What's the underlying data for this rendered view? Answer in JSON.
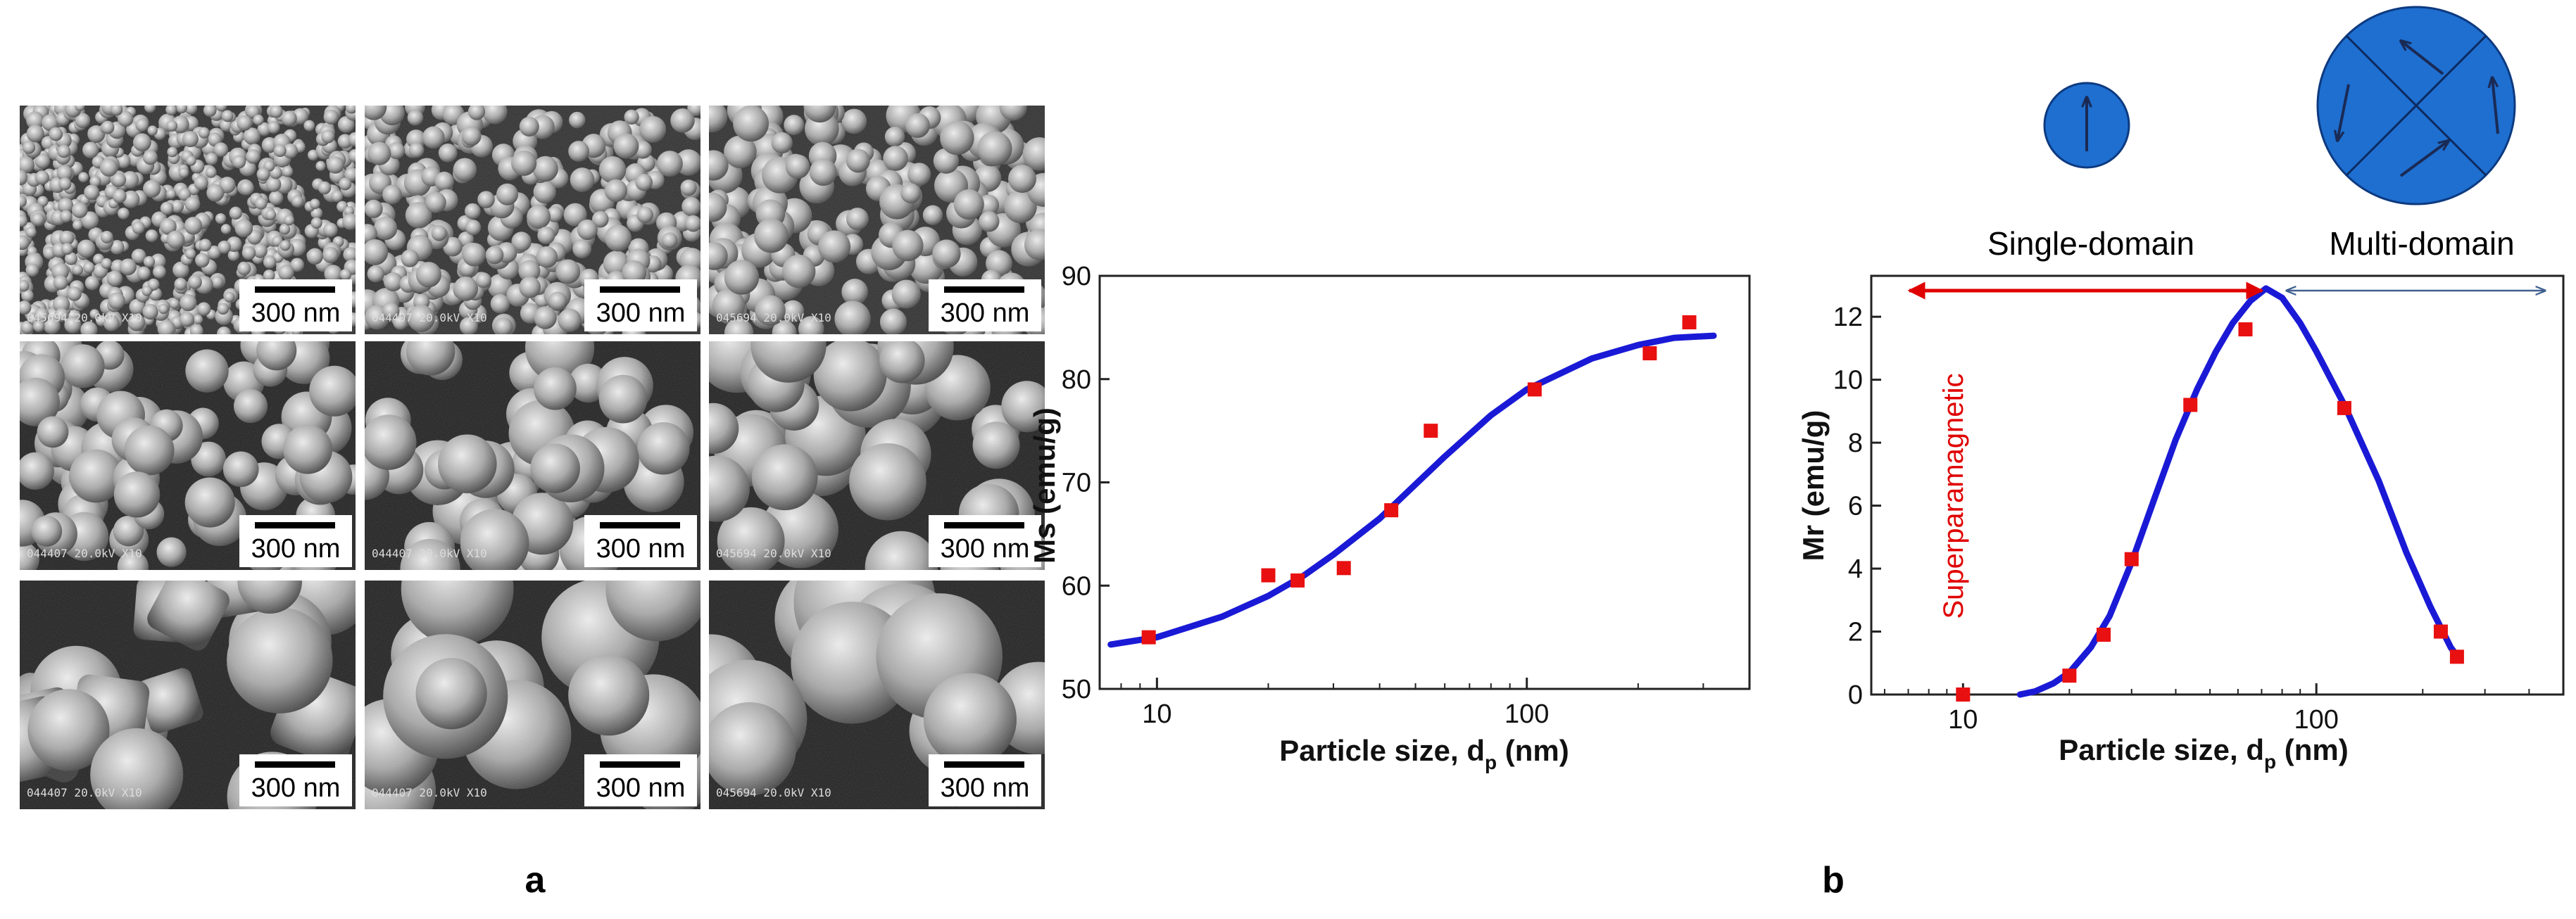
{
  "figure": {
    "panel_a_label": "a",
    "panel_b_label": "b",
    "scalebar_label": "300 nm",
    "legend_regimes": [
      "Single-domain",
      "Multi-domain"
    ],
    "superparamagnetic_label": "Superparamagnetic",
    "colors": {
      "curve": "#1a1ad6",
      "points": "#e81010",
      "domain_fill": "#1e6fd0",
      "arrow_red": "#e00000",
      "arrow_blue": "#3f5f8f"
    },
    "micrographs": {
      "rows": 3,
      "cols": 3,
      "metadata_strips": [
        "045694 20.0kV X10",
        "044407 20.0kV X10",
        "045694 20.0kV X10",
        "044407 20.0kV X10",
        "044407 20.0kV X10",
        "045694 20.0kV X10",
        "044407 20.0kV X10",
        "044407 20.0kV X10",
        "045694 20.0kV X10"
      ]
    }
  },
  "chart_data": [
    {
      "type": "scatter",
      "ylabel": "Ms (emu/g)",
      "xlabel_main": "Particle size, d",
      "xlabel_sub": "p",
      "xlabel_unit": " (nm)",
      "x_scale": "log",
      "xlim": [
        7,
        400
      ],
      "ylim": [
        50,
        90
      ],
      "x_ticks": [
        10,
        100
      ],
      "y_ticks": [
        50,
        60,
        70,
        80,
        90
      ],
      "points": [
        [
          9.5,
          55
        ],
        [
          20,
          61
        ],
        [
          24,
          60.5
        ],
        [
          32,
          61.7
        ],
        [
          43,
          67.3
        ],
        [
          55,
          75
        ],
        [
          105,
          79
        ],
        [
          215,
          82.5
        ],
        [
          275,
          85.5
        ]
      ],
      "fit_curve": [
        [
          7.5,
          54.3
        ],
        [
          10,
          55
        ],
        [
          15,
          57
        ],
        [
          20,
          59
        ],
        [
          25,
          61
        ],
        [
          30,
          63
        ],
        [
          40,
          66.5
        ],
        [
          50,
          69.8
        ],
        [
          60,
          72.5
        ],
        [
          80,
          76.5
        ],
        [
          100,
          79
        ],
        [
          150,
          82
        ],
        [
          200,
          83.3
        ],
        [
          250,
          84
        ],
        [
          320,
          84.2
        ]
      ]
    },
    {
      "type": "scatter",
      "ylabel": "Mr (emu/g)",
      "xlabel_main": "Particle size, d",
      "xlabel_sub": "p",
      "xlabel_unit": " (nm)",
      "x_scale": "log",
      "xlim": [
        5.5,
        500
      ],
      "ylim": [
        0,
        13.3
      ],
      "x_ticks": [
        10,
        100
      ],
      "y_ticks": [
        0,
        2,
        4,
        6,
        8,
        10,
        12
      ],
      "points": [
        [
          10,
          0
        ],
        [
          20,
          0.6
        ],
        [
          25,
          1.9
        ],
        [
          30,
          4.3
        ],
        [
          44,
          9.2
        ],
        [
          63,
          11.6
        ],
        [
          120,
          9.1
        ],
        [
          225,
          2.0
        ],
        [
          250,
          1.2
        ]
      ],
      "fit_curve": [
        [
          14.5,
          0
        ],
        [
          16,
          0.1
        ],
        [
          18,
          0.35
        ],
        [
          20,
          0.7
        ],
        [
          23,
          1.5
        ],
        [
          26,
          2.5
        ],
        [
          30,
          4.2
        ],
        [
          35,
          6.3
        ],
        [
          40,
          8.1
        ],
        [
          46,
          9.7
        ],
        [
          52,
          10.9
        ],
        [
          58,
          11.8
        ],
        [
          65,
          12.5
        ],
        [
          72,
          12.9
        ],
        [
          80,
          12.6
        ],
        [
          90,
          11.8
        ],
        [
          100,
          10.9
        ],
        [
          120,
          9.2
        ],
        [
          150,
          6.8
        ],
        [
          180,
          4.5
        ],
        [
          210,
          2.8
        ],
        [
          240,
          1.5
        ],
        [
          255,
          1.1
        ]
      ]
    }
  ]
}
